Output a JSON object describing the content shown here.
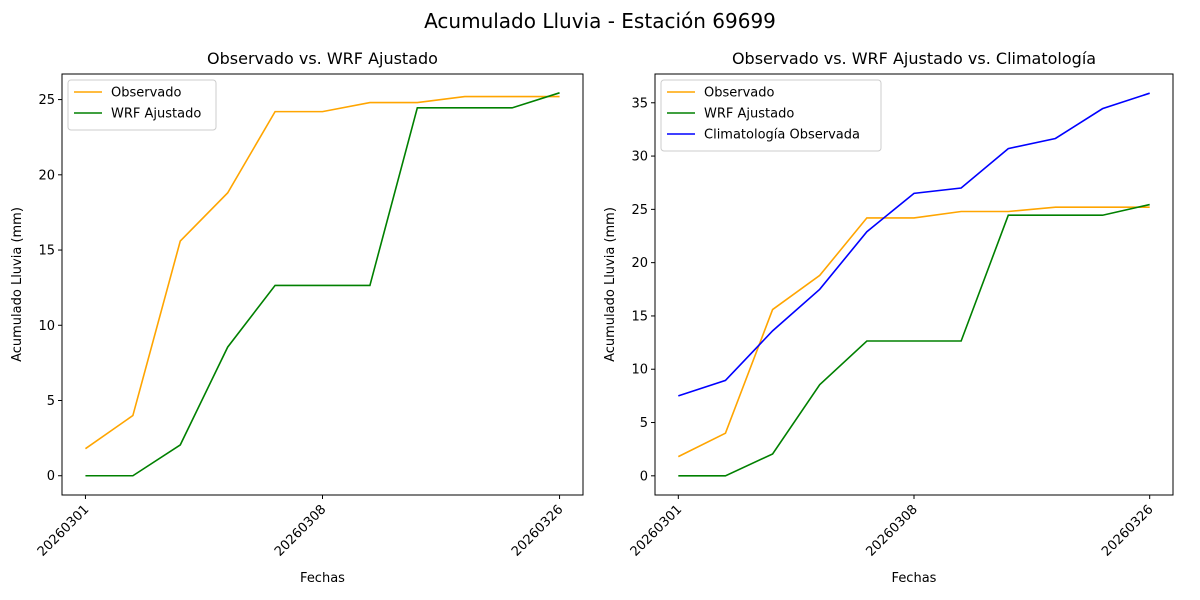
{
  "figure": {
    "suptitle": "Acumulado Lluvia - Estación 69699"
  },
  "colors": {
    "observado": "#ffa500",
    "wrf": "#008000",
    "climatologia": "#0000ff"
  },
  "chart_data": [
    {
      "type": "line",
      "title": "Observado vs. WRF Ajustado",
      "xlabel": "Fechas",
      "ylabel": "Acumulado Lluvia (mm)",
      "x_index": [
        0,
        1,
        2,
        3,
        4,
        5,
        6,
        7,
        8,
        9,
        10
      ],
      "x_tick_labels": [
        {
          "index": 0,
          "label": "20260301"
        },
        {
          "index": 5,
          "label": "20260308"
        },
        {
          "index": 10,
          "label": "20260326"
        }
      ],
      "ylim": [
        -1.28,
        26.7
      ],
      "yticks": [
        0,
        5,
        10,
        15,
        20,
        25
      ],
      "legend_position": "top-left",
      "series": [
        {
          "name": "Observado",
          "color": "#ffa500",
          "values": [
            1.8,
            4.0,
            15.6,
            18.8,
            24.2,
            24.2,
            24.8,
            24.8,
            25.2,
            25.2,
            25.2
          ]
        },
        {
          "name": "WRF Ajustado",
          "color": "#008000",
          "values": [
            0.0,
            0.0,
            2.05,
            8.55,
            12.65,
            12.65,
            12.65,
            24.45,
            24.45,
            24.45,
            25.45
          ]
        }
      ]
    },
    {
      "type": "line",
      "title": "Observado vs. WRF Ajustado vs. Climatología",
      "xlabel": "Fechas",
      "ylabel": "Acumulado Lluvia (mm)",
      "x_index": [
        0,
        1,
        2,
        3,
        4,
        5,
        6,
        7,
        8,
        9,
        10
      ],
      "x_tick_labels": [
        {
          "index": 0,
          "label": "20260301"
        },
        {
          "index": 5,
          "label": "20260308"
        },
        {
          "index": 10,
          "label": "20260326"
        }
      ],
      "ylim": [
        -1.8,
        37.7
      ],
      "yticks": [
        0,
        5,
        10,
        15,
        20,
        25,
        30,
        35
      ],
      "legend_position": "top-left",
      "series": [
        {
          "name": "Observado",
          "color": "#ffa500",
          "values": [
            1.8,
            4.0,
            15.6,
            18.8,
            24.2,
            24.2,
            24.8,
            24.8,
            25.2,
            25.2,
            25.2
          ]
        },
        {
          "name": "WRF Ajustado",
          "color": "#008000",
          "values": [
            0.0,
            0.0,
            2.05,
            8.55,
            12.65,
            12.65,
            12.65,
            24.45,
            24.45,
            24.45,
            25.45
          ]
        },
        {
          "name": "Climatología Observada",
          "color": "#0000ff",
          "values": [
            7.5,
            8.95,
            13.6,
            17.5,
            22.9,
            26.5,
            27.0,
            30.7,
            31.65,
            34.45,
            35.9
          ]
        }
      ]
    }
  ]
}
